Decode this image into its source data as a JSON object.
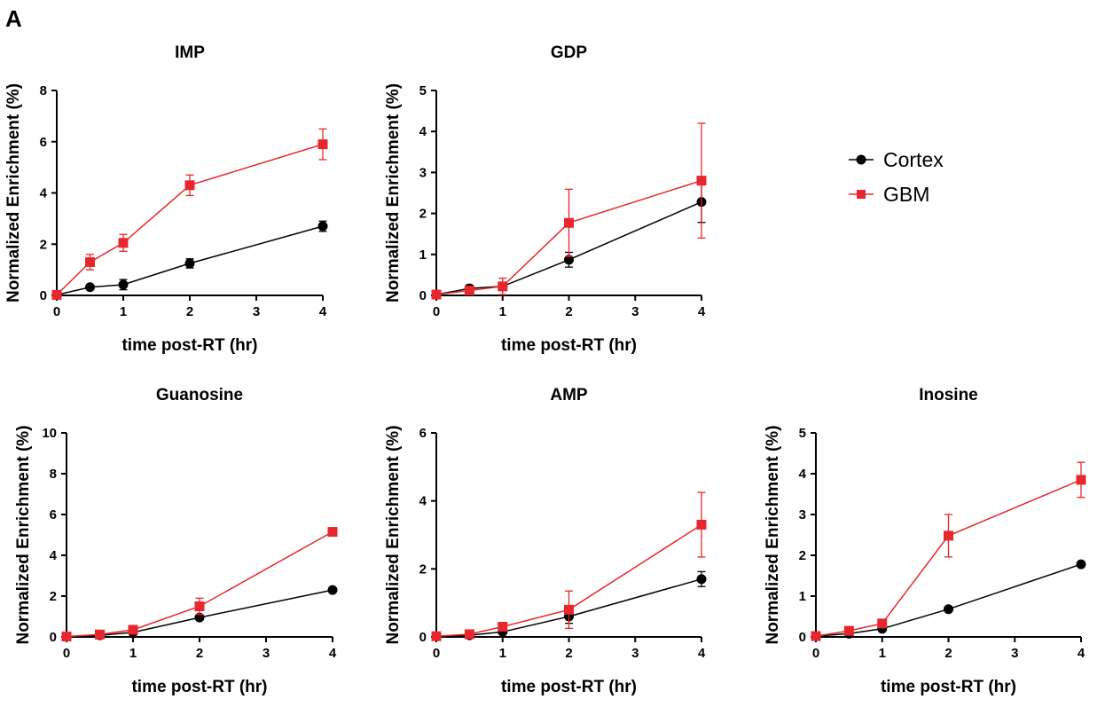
{
  "figure_label": "A",
  "legend": {
    "entries": [
      {
        "name": "Cortex",
        "color": "#000000",
        "marker": "circle"
      },
      {
        "name": "GBM",
        "color": "#e8272c",
        "marker": "square"
      }
    ],
    "placement": "right of top row"
  },
  "chart_data": [
    {
      "type": "line",
      "title": "IMP",
      "xlabel": "time post-RT (hr)",
      "ylabel": "Normalized Enrichment (%)",
      "xlim": [
        0,
        4
      ],
      "ylim": [
        0,
        8
      ],
      "xticks": [
        0,
        1,
        2,
        3,
        4
      ],
      "yticks": [
        0,
        2,
        4,
        6,
        8
      ],
      "x": [
        0,
        0.5,
        1,
        2,
        4
      ],
      "series": [
        {
          "name": "Cortex",
          "color": "#000000",
          "marker": "circle",
          "values": [
            0.02,
            0.32,
            0.42,
            1.25,
            2.7
          ],
          "errors": [
            0.02,
            0.05,
            0.2,
            0.18,
            0.2
          ]
        },
        {
          "name": "GBM",
          "color": "#e8272c",
          "marker": "square",
          "values": [
            0.02,
            1.3,
            2.05,
            4.3,
            5.9
          ],
          "errors": [
            0.02,
            0.3,
            0.33,
            0.4,
            0.6
          ]
        }
      ]
    },
    {
      "type": "line",
      "title": "GDP",
      "xlabel": "time post-RT (hr)",
      "ylabel": "Normalized Enrichment (%)",
      "xlim": [
        0,
        4
      ],
      "ylim": [
        0,
        5
      ],
      "xticks": [
        0,
        1,
        2,
        3,
        4
      ],
      "yticks": [
        0,
        1,
        2,
        3,
        4,
        5
      ],
      "x": [
        0,
        0.5,
        1,
        2,
        4
      ],
      "series": [
        {
          "name": "Cortex",
          "color": "#000000",
          "marker": "circle",
          "values": [
            0.02,
            0.17,
            0.22,
            0.87,
            2.28
          ],
          "errors": [
            0.02,
            0.08,
            0.08,
            0.18,
            0.5
          ]
        },
        {
          "name": "GBM",
          "color": "#e8272c",
          "marker": "square",
          "values": [
            0.02,
            0.12,
            0.22,
            1.77,
            2.8
          ],
          "errors": [
            0.02,
            0.05,
            0.2,
            0.82,
            1.4
          ]
        }
      ]
    },
    {
      "type": "line",
      "title": "Guanosine",
      "xlabel": "time post-RT (hr)",
      "ylabel": "Normalized Enrichment (%)",
      "xlim": [
        0,
        4
      ],
      "ylim": [
        0,
        10
      ],
      "xticks": [
        0,
        1,
        2,
        3,
        4
      ],
      "yticks": [
        0,
        2,
        4,
        6,
        8,
        10
      ],
      "x": [
        0,
        0.5,
        1,
        2,
        4
      ],
      "series": [
        {
          "name": "Cortex",
          "color": "#000000",
          "marker": "circle",
          "values": [
            0.02,
            0.08,
            0.22,
            0.95,
            2.3
          ],
          "errors": [
            0.02,
            0.03,
            0.05,
            0.12,
            0.08
          ]
        },
        {
          "name": "GBM",
          "color": "#e8272c",
          "marker": "square",
          "values": [
            0.02,
            0.12,
            0.35,
            1.5,
            5.15
          ],
          "errors": [
            0.02,
            0.05,
            0.08,
            0.4,
            0.12
          ]
        }
      ]
    },
    {
      "type": "line",
      "title": "AMP",
      "xlabel": "time post-RT (hr)",
      "ylabel": "Normalized Enrichment (%)",
      "xlim": [
        0,
        4
      ],
      "ylim": [
        0,
        6
      ],
      "xticks": [
        0,
        1,
        2,
        3,
        4
      ],
      "yticks": [
        0,
        2,
        4,
        6
      ],
      "x": [
        0,
        0.5,
        1,
        2,
        4
      ],
      "series": [
        {
          "name": "Cortex",
          "color": "#000000",
          "marker": "circle",
          "values": [
            0.02,
            0.05,
            0.15,
            0.6,
            1.7
          ],
          "errors": [
            0.02,
            0.03,
            0.05,
            0.2,
            0.22
          ]
        },
        {
          "name": "GBM",
          "color": "#e8272c",
          "marker": "square",
          "values": [
            0.02,
            0.08,
            0.3,
            0.8,
            3.3
          ],
          "errors": [
            0.02,
            0.04,
            0.08,
            0.55,
            0.95
          ]
        }
      ]
    },
    {
      "type": "line",
      "title": "Inosine",
      "xlabel": "time post-RT (hr)",
      "ylabel": "Normalized Enrichment (%)",
      "xlim": [
        0,
        4
      ],
      "ylim": [
        0,
        5
      ],
      "xticks": [
        0,
        1,
        2,
        3,
        4
      ],
      "yticks": [
        0,
        1,
        2,
        3,
        4,
        5
      ],
      "x": [
        0,
        0.5,
        1,
        2,
        4
      ],
      "series": [
        {
          "name": "Cortex",
          "color": "#000000",
          "marker": "circle",
          "values": [
            0.02,
            0.08,
            0.2,
            0.68,
            1.78
          ],
          "errors": [
            0.02,
            0.02,
            0.04,
            0.06,
            0.06
          ]
        },
        {
          "name": "GBM",
          "color": "#e8272c",
          "marker": "square",
          "values": [
            0.02,
            0.15,
            0.33,
            2.48,
            3.85
          ],
          "errors": [
            0.02,
            0.05,
            0.06,
            0.52,
            0.43
          ]
        }
      ]
    }
  ]
}
